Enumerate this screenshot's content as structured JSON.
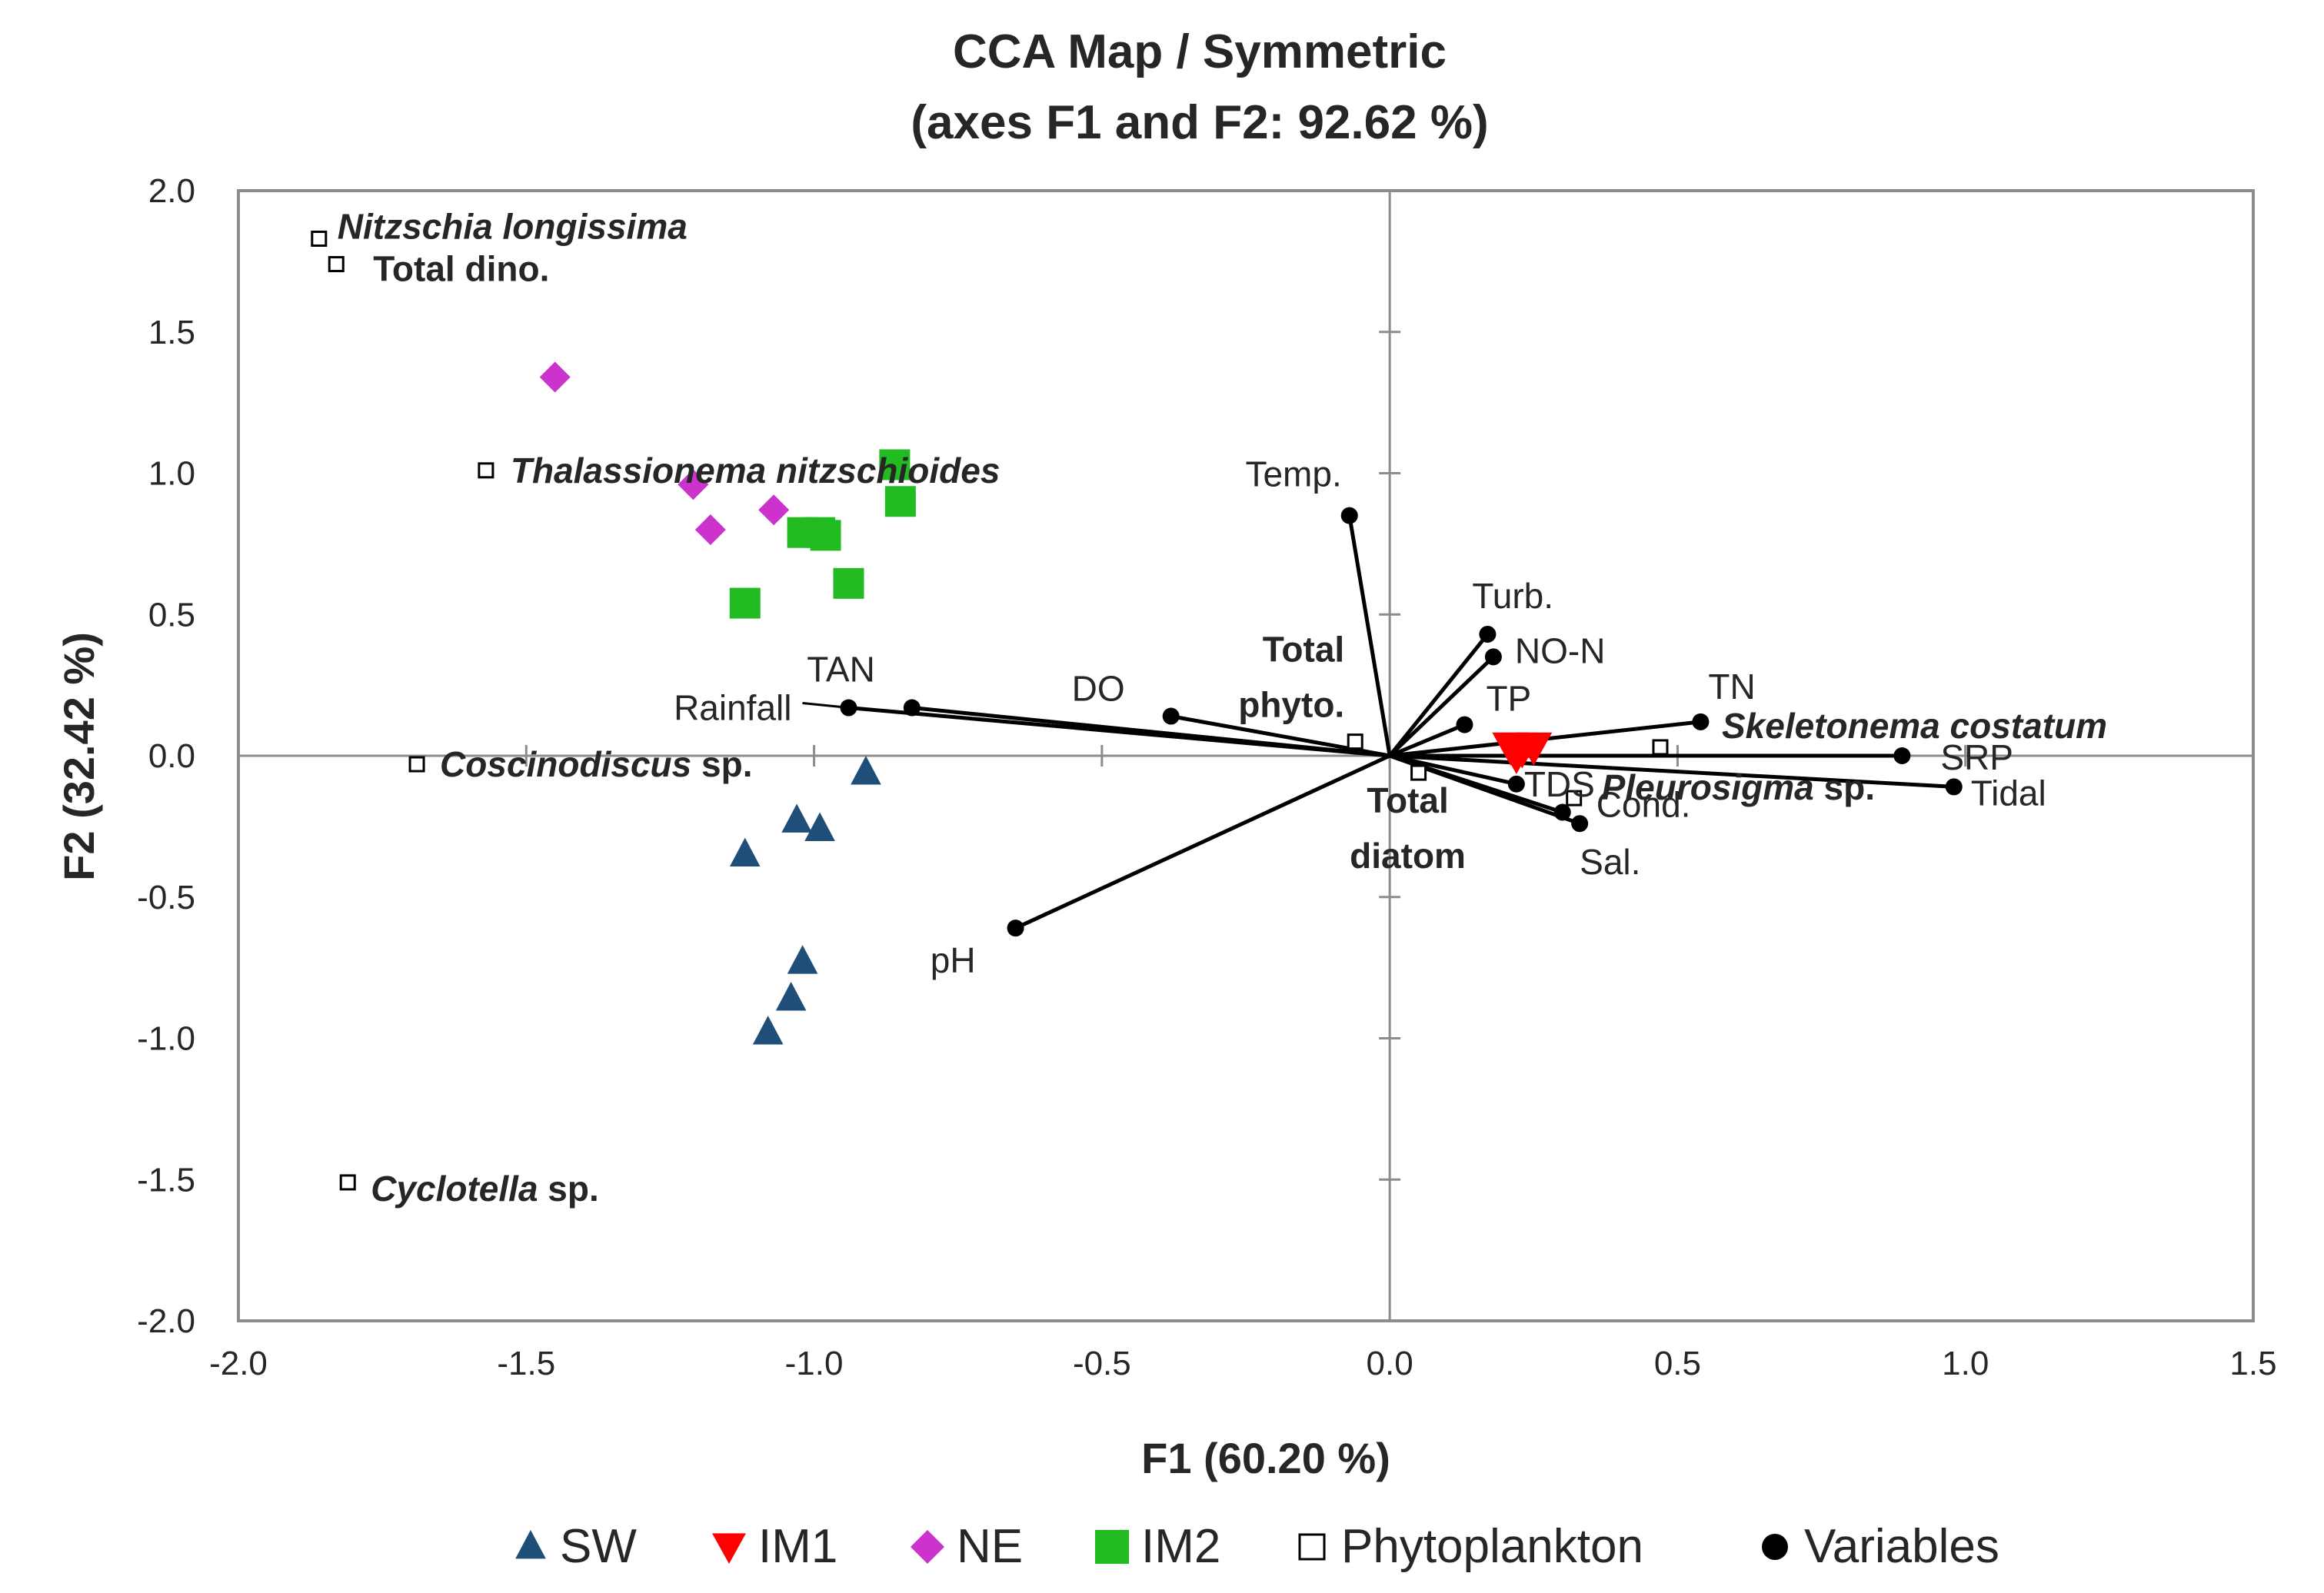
{
  "chart_data": {
    "type": "scatter",
    "title": "CCA Map / Symmetric",
    "subtitle": "(axes F1 and F2: 92.62 %)",
    "xlabel": "F1 (60.20 %)",
    "ylabel": "F2 (32.42 %)",
    "xlim": [
      -2.0,
      1.5
    ],
    "ylim": [
      -2.0,
      2.0
    ],
    "xticks": [
      "-2.0",
      "-1.5",
      "-1.0",
      "-0.5",
      "0.0",
      "0.5",
      "1.0",
      "1.5"
    ],
    "yticks": [
      "-2.0",
      "-1.5",
      "-1.0",
      "-0.5",
      "0.0",
      "0.5",
      "1.0",
      "1.5",
      "2.0"
    ],
    "legend_position": "bottom",
    "colors": {
      "SW": "#1f4e79",
      "IM1": "#ff0000",
      "NE": "#cc33cc",
      "IM2": "#22bb22",
      "Phytoplankton": "#000000",
      "Variables": "#000000"
    },
    "series": [
      {
        "name": "SW",
        "marker": "triangle-up",
        "points": [
          {
            "x": -0.91,
            "y": -0.06
          },
          {
            "x": -1.03,
            "y": -0.23
          },
          {
            "x": -0.99,
            "y": -0.26
          },
          {
            "x": -1.12,
            "y": -0.35
          },
          {
            "x": -1.02,
            "y": -0.73
          },
          {
            "x": -1.04,
            "y": -0.86
          },
          {
            "x": -1.08,
            "y": -0.98
          }
        ]
      },
      {
        "name": "IM1",
        "marker": "triangle-down",
        "points": [
          {
            "x": 0.21,
            "y": 0.03
          },
          {
            "x": 0.23,
            "y": 0.02
          },
          {
            "x": 0.25,
            "y": 0.03
          },
          {
            "x": 0.22,
            "y": 0.0
          }
        ]
      },
      {
        "name": "NE",
        "marker": "diamond",
        "points": [
          {
            "x": -1.45,
            "y": 1.34
          },
          {
            "x": -1.21,
            "y": 0.96
          },
          {
            "x": -1.18,
            "y": 0.8
          },
          {
            "x": -1.07,
            "y": 0.87
          }
        ]
      },
      {
        "name": "IM2",
        "marker": "square",
        "points": [
          {
            "x": -0.86,
            "y": 1.03
          },
          {
            "x": -0.85,
            "y": 0.9
          },
          {
            "x": -1.02,
            "y": 0.79
          },
          {
            "x": -0.99,
            "y": 0.79
          },
          {
            "x": -0.98,
            "y": 0.78
          },
          {
            "x": -0.94,
            "y": 0.61
          },
          {
            "x": -1.12,
            "y": 0.54
          }
        ]
      },
      {
        "name": "Phytoplankton",
        "marker": "open-square",
        "points": [
          {
            "label": "Nitzschia longissima",
            "italic": true,
            "x": -1.86,
            "y": 1.83
          },
          {
            "label": "Total dino.",
            "italic": false,
            "x": -1.83,
            "y": 1.74
          },
          {
            "label": "Thalassionema nitzschioides",
            "italic": true,
            "x": -1.57,
            "y": 1.01
          },
          {
            "label": "Coscinodiscus sp.",
            "italic": true,
            "x": -1.69,
            "y": -0.03
          },
          {
            "label": "Cyclotella sp.",
            "italic": true,
            "x": -1.81,
            "y": -1.51
          },
          {
            "label": "Total phyto.",
            "italic": false,
            "x": -0.06,
            "y": 0.05
          },
          {
            "label": "Total diatom",
            "italic": false,
            "x": 0.05,
            "y": -0.06
          },
          {
            "label": "Skeletonema costatum",
            "italic": true,
            "x": 0.47,
            "y": 0.03
          },
          {
            "label": "Pleurosigma sp.",
            "italic": true,
            "x": 0.32,
            "y": -0.15
          }
        ]
      },
      {
        "name": "Variables",
        "marker": "filled-circle",
        "points": [
          {
            "label": "Temp.",
            "x": -0.07,
            "y": 0.85
          },
          {
            "label": "Turb.",
            "x": 0.17,
            "y": 0.43
          },
          {
            "label": "NO-N",
            "x": 0.18,
            "y": 0.35
          },
          {
            "label": "TP",
            "x": 0.13,
            "y": 0.11
          },
          {
            "label": "TN",
            "x": 0.54,
            "y": 0.12
          },
          {
            "label": "SRP",
            "x": 0.89,
            "y": 0.0
          },
          {
            "label": "Tidal",
            "x": 0.98,
            "y": -0.11
          },
          {
            "label": "TDS",
            "x": 0.22,
            "y": -0.1
          },
          {
            "label": "Cond.",
            "x": 0.3,
            "y": -0.2
          },
          {
            "label": "Sal.",
            "x": 0.33,
            "y": -0.24
          },
          {
            "label": "pH",
            "x": -0.65,
            "y": -0.61
          },
          {
            "label": "DO",
            "x": -0.38,
            "y": 0.14
          },
          {
            "label": "TAN",
            "x": -0.83,
            "y": 0.17
          },
          {
            "label": "Rainfall",
            "x": -0.94,
            "y": 0.17
          }
        ]
      }
    ]
  }
}
